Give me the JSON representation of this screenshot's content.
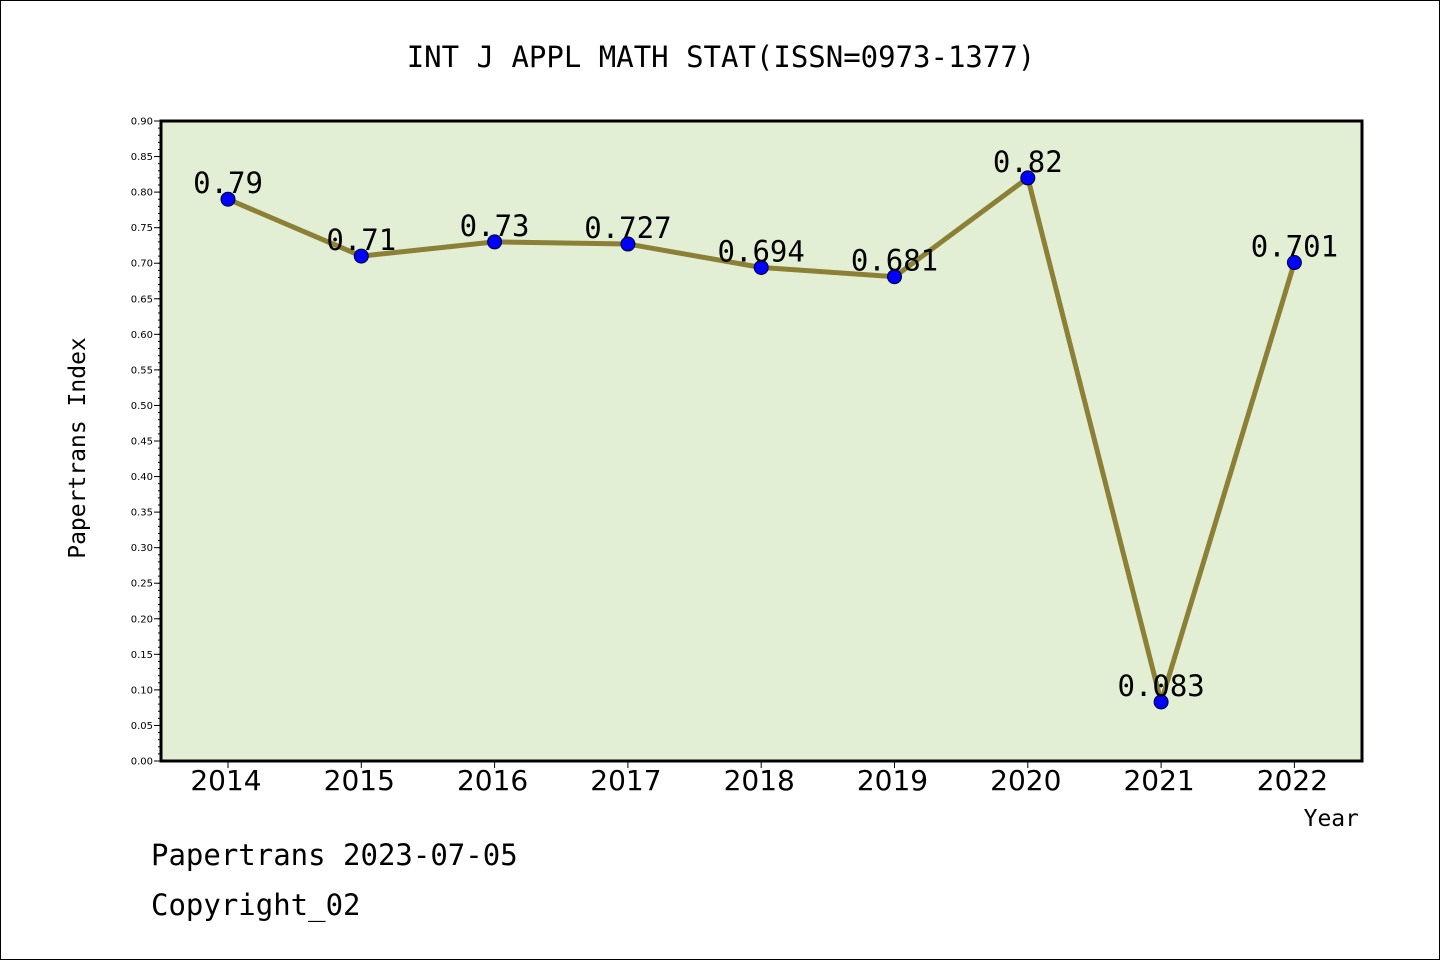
{
  "chart_data": {
    "type": "line",
    "title": "INT J APPL MATH STAT(ISSN=0973-1377)",
    "xlabel": "Year",
    "ylabel": "Papertrans Index",
    "categories": [
      "2014",
      "2015",
      "2016",
      "2017",
      "2018",
      "2019",
      "2020",
      "2021",
      "2022"
    ],
    "series": [
      {
        "values": [
          0.79,
          0.71,
          0.73,
          0.727,
          0.694,
          0.681,
          0.82,
          0.083,
          0.701
        ],
        "labels": [
          "0.79",
          "0.71",
          "0.73",
          "0.727",
          "0.694",
          "0.681",
          "0.82",
          "0.083",
          "0.701"
        ]
      }
    ],
    "yticks": [
      "0.00",
      "0.05",
      "0.10",
      "0.15",
      "0.20",
      "0.25",
      "0.30",
      "0.35",
      "0.40",
      "0.45",
      "0.50",
      "0.55",
      "0.60",
      "0.65",
      "0.70",
      "0.75",
      "0.80",
      "0.85",
      "0.90"
    ],
    "ylim": [
      0,
      0.9
    ],
    "grid": false,
    "colors": {
      "plot_bg": "#e2efd4",
      "line": "#8b8035",
      "marker": "#0000ff"
    }
  },
  "footer": {
    "line1": "Papertrans 2023-07-05",
    "line2": "Copyright_02"
  }
}
